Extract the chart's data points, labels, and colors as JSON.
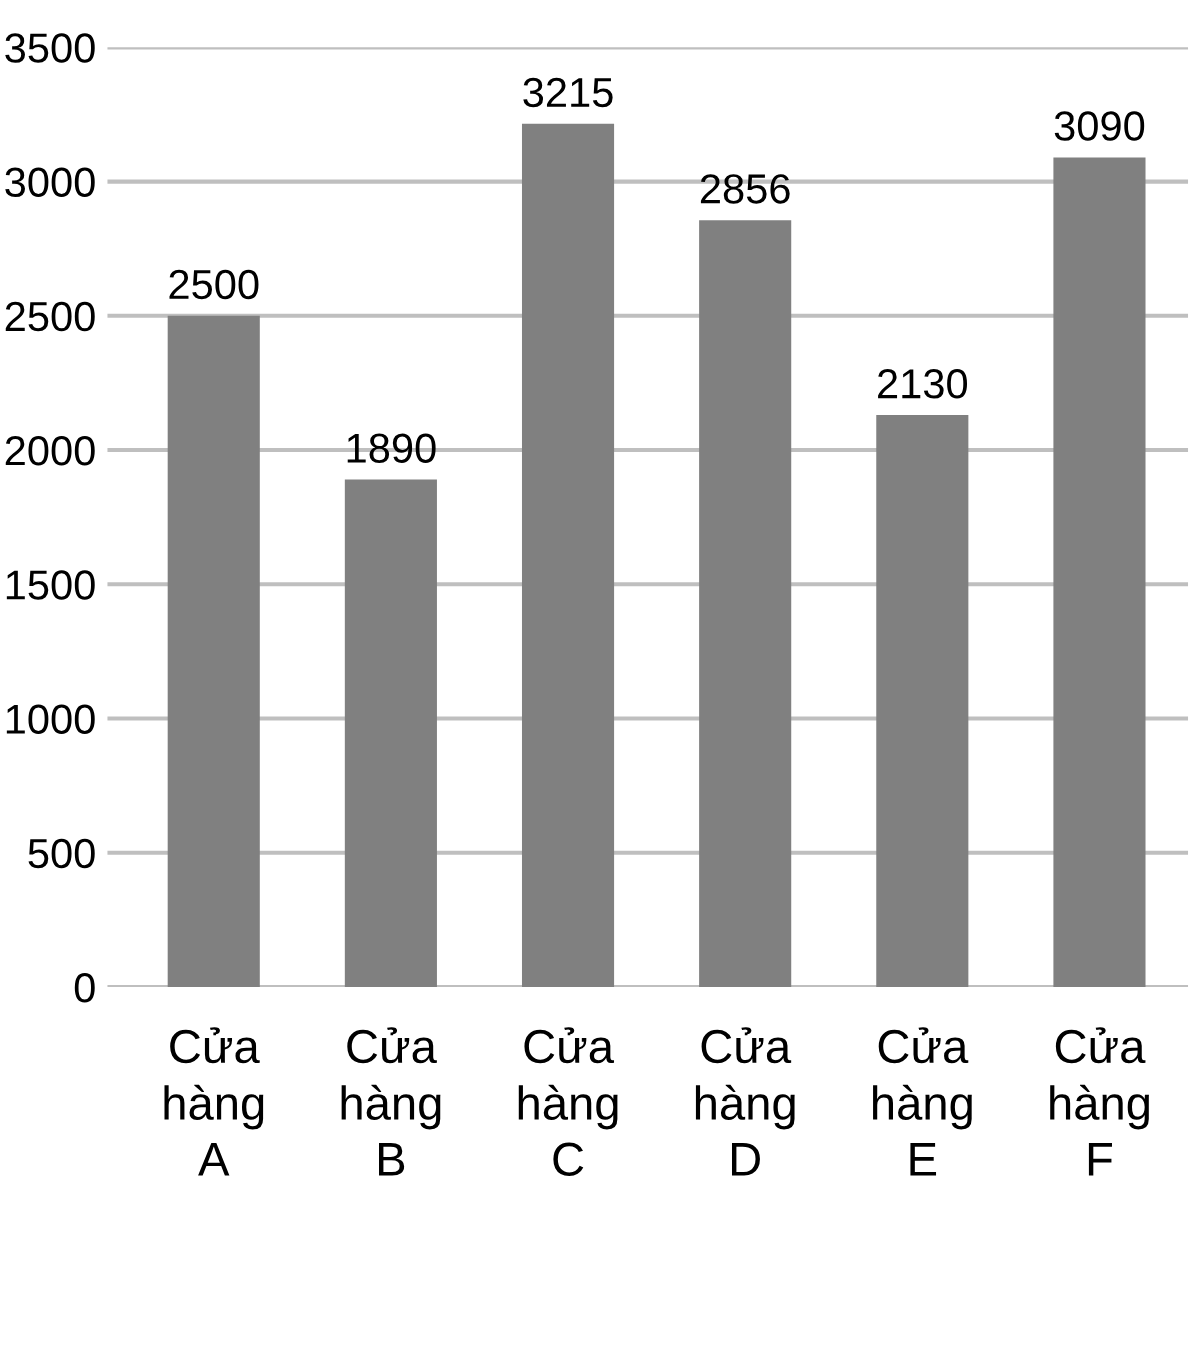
{
  "chart_data": {
    "type": "bar",
    "categories": [
      "Cửa\nhàng\nA",
      "Cửa\nhàng\nB",
      "Cửa\nhàng\nC",
      "Cửa\nhàng\nD",
      "Cửa\nhàng\nE",
      "Cửa\nhàng\nF"
    ],
    "values": [
      2500,
      1890,
      3215,
      2856,
      2130,
      3090
    ],
    "color": "#808080",
    "ylim": [
      0,
      3500
    ],
    "yticks": [
      0,
      500,
      1000,
      1500,
      2000,
      2500,
      3000,
      3500
    ],
    "grid": "y",
    "data_labels": true
  }
}
